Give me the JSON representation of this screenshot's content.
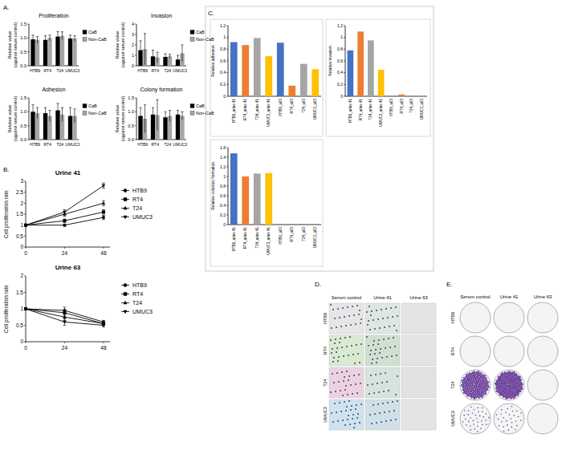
{
  "panel_labels": [
    "A.",
    "B.",
    "C.",
    "D.",
    "E."
  ],
  "chart_data": [
    {
      "type": "bar",
      "title": "Proliferation",
      "y_label": "Relative value (against serum control)",
      "categories": [
        "HTB9",
        "RT4",
        "T24",
        "UMUC3"
      ],
      "series": [
        {
          "name": "CaB",
          "color": "#000000",
          "values": [
            0.95,
            0.93,
            1.05,
            0.98
          ],
          "errors": [
            0.15,
            0.15,
            0.18,
            0.12
          ]
        },
        {
          "name": "Non-CaB",
          "color": "#a6a6a6",
          "values": [
            0.93,
            1.0,
            1.08,
            0.98
          ],
          "errors": [
            0.12,
            0.1,
            0.14,
            0.1
          ]
        }
      ],
      "ylim": [
        0,
        1.5
      ],
      "yticks": [
        {
          "value": 0,
          "label": "0.0"
        },
        {
          "value": 0.5,
          "label": "0.5"
        },
        {
          "value": 1,
          "label": "1.0"
        },
        {
          "value": 1.5,
          "label": "1.5"
        }
      ],
      "legend": "right"
    },
    {
      "type": "bar",
      "title": "Invasion",
      "y_label": "Relative value (against serum control)",
      "categories": [
        "HTB9",
        "RT4",
        "T24",
        "UMUC3"
      ],
      "series": [
        {
          "name": "CaB",
          "color": "#000000",
          "values": [
            1.5,
            0.9,
            0.85,
            0.6
          ],
          "errors": [
            0.9,
            0.6,
            0.3,
            0.4
          ]
        },
        {
          "name": "Non-CaB",
          "color": "#a6a6a6",
          "values": [
            1.6,
            0.8,
            0.9,
            1.2
          ],
          "errors": [
            1.5,
            0.5,
            0.2,
            0.8
          ]
        }
      ],
      "ylim": [
        0,
        4
      ],
      "yticks": [
        0,
        1,
        2,
        3,
        4
      ],
      "legend": "right"
    },
    {
      "type": "bar",
      "title": "Adhesion",
      "y_label": "Relative value (against serum control)",
      "categories": [
        "HTB9",
        "RT4",
        "T24",
        "UMUC3"
      ],
      "series": [
        {
          "name": "CaB",
          "color": "#000000",
          "values": [
            1.0,
            0.95,
            1.05,
            0.85
          ],
          "errors": [
            0.25,
            0.2,
            0.25,
            0.3
          ]
        },
        {
          "name": "Non-CaB",
          "color": "#a6a6a6",
          "values": [
            0.95,
            0.85,
            0.9,
            0.85
          ],
          "errors": [
            0.2,
            0.2,
            0.25,
            0.25
          ]
        }
      ],
      "ylim": [
        0,
        1.5
      ],
      "yticks": [
        {
          "value": 0,
          "label": "0.0"
        },
        {
          "value": 0.5,
          "label": "0.5"
        },
        {
          "value": 1,
          "label": "1.0"
        },
        {
          "value": 1.5,
          "label": "1.5"
        }
      ],
      "legend": "right"
    },
    {
      "type": "bar",
      "title": "Colony formation",
      "y_label": "Relative value (against serum control)",
      "categories": [
        "HTB9",
        "RT4",
        "T24",
        "UMUC3"
      ],
      "series": [
        {
          "name": "CaB",
          "color": "#000000",
          "values": [
            0.85,
            0.9,
            0.8,
            0.9
          ],
          "errors": [
            0.3,
            0.25,
            0.2,
            0.15
          ]
        },
        {
          "name": "Non-CaB",
          "color": "#a6a6a6",
          "values": [
            0.75,
            0.88,
            0.85,
            0.85
          ],
          "errors": [
            0.5,
            0.55,
            0.2,
            0.15
          ]
        }
      ],
      "ylim": [
        0,
        1.5
      ],
      "yticks": [
        {
          "value": 0,
          "label": "0.0"
        },
        {
          "value": 0.5,
          "label": "0.5"
        },
        {
          "value": 1,
          "label": "1.0"
        },
        {
          "value": 1.5,
          "label": "1.5"
        }
      ],
      "legend": "right"
    },
    {
      "type": "line",
      "title": "Urine 41",
      "y_label": "Cell proliferation rate",
      "x": [
        0,
        24,
        48
      ],
      "xlim": [
        0,
        52
      ],
      "xticks": [
        0,
        24,
        48
      ],
      "ylim": [
        0,
        3
      ],
      "yticks": [
        0,
        0.5,
        1,
        1.5,
        2,
        2.5,
        3
      ],
      "legend": "right",
      "series": [
        {
          "name": "HTB9",
          "color": "#000000",
          "marker": "circle",
          "values": [
            1,
            1.0,
            1.35
          ],
          "errors": [
            0,
            0.05,
            0.1
          ]
        },
        {
          "name": "RT4",
          "color": "#000000",
          "marker": "square",
          "values": [
            1,
            1.2,
            1.6
          ],
          "errors": [
            0,
            0.08,
            0.1
          ]
        },
        {
          "name": "T24",
          "color": "#000000",
          "marker": "triangle",
          "values": [
            1,
            1.5,
            2.0
          ],
          "errors": [
            0,
            0.1,
            0.12
          ]
        },
        {
          "name": "UMUC3",
          "color": "#000000",
          "marker": "triangle-down",
          "values": [
            1,
            1.6,
            2.8
          ],
          "errors": [
            0,
            0.1,
            0.12
          ]
        }
      ]
    },
    {
      "type": "line",
      "title": "Urine 63",
      "y_label": "Cell proliferation rate",
      "x": [
        0,
        24,
        48
      ],
      "xlim": [
        0,
        52
      ],
      "xticks": [
        0,
        24,
        48
      ],
      "ylim": [
        0,
        2
      ],
      "yticks": [
        0,
        0.5,
        1,
        1.5,
        2
      ],
      "legend": "right",
      "series": [
        {
          "name": "HTB9",
          "color": "#000000",
          "marker": "circle",
          "values": [
            1,
            0.95,
            0.6
          ],
          "errors": [
            0,
            0.1,
            0.05
          ]
        },
        {
          "name": "RT4",
          "color": "#000000",
          "marker": "square",
          "values": [
            1,
            0.88,
            0.55
          ],
          "errors": [
            0,
            0.08,
            0.05
          ]
        },
        {
          "name": "T24",
          "color": "#000000",
          "marker": "triangle",
          "values": [
            1,
            0.75,
            0.55
          ],
          "errors": [
            0,
            0.1,
            0.05
          ]
        },
        {
          "name": "UMUC3",
          "color": "#000000",
          "marker": "triangle-down",
          "values": [
            1,
            0.6,
            0.5
          ],
          "errors": [
            0,
            0.1,
            0.05
          ]
        }
      ]
    },
    {
      "type": "bar",
      "y_label": "Relative adhesion",
      "categories": [
        "HTB9_urine 41",
        "RT4_urine 41",
        "T24_urine 41",
        "UMUC3_urine 41",
        "HTB9_u63",
        "RT4_u63",
        "T24_u63",
        "UMUC3_u63"
      ],
      "values": [
        0.92,
        0.87,
        0.99,
        0.68,
        0.91,
        0.18,
        0.55,
        0.46
      ],
      "colors": [
        "#4472c4",
        "#ed7d31",
        "#a5a5a5",
        "#ffc000",
        "#4472c4",
        "#ed7d31",
        "#a5a5a5",
        "#ffc000"
      ],
      "ylim": [
        0,
        1.2
      ],
      "yticks": [
        0,
        0.2,
        0.4,
        0.6,
        0.8,
        1,
        1.2
      ]
    },
    {
      "type": "bar",
      "y_label": "Relative invasion",
      "categories": [
        "HTB9_urine 41",
        "RT4_urine 41",
        "T24_urine 41",
        "UMUC3_urine 41",
        "HTB9_u63",
        "RT4_u63",
        "T24_u63",
        "UMUC3_u63"
      ],
      "values": [
        0.78,
        1.1,
        0.95,
        0.45,
        0,
        0.03,
        0.005,
        0.003
      ],
      "colors": [
        "#4472c4",
        "#ed7d31",
        "#a5a5a5",
        "#ffc000",
        "#4472c4",
        "#ed7d31",
        "#a5a5a5",
        "#ffc000"
      ],
      "ylim": [
        0,
        1.2
      ],
      "yticks": [
        0,
        0.2,
        0.4,
        0.6,
        0.8,
        1,
        1.2
      ]
    },
    {
      "type": "bar",
      "y_label": "Relative colonies formation",
      "categories": [
        "HTB9_urine 41",
        "RT4_urine 41",
        "T24_urine 41",
        "UMUC3_urine 41",
        "HTB9_u63",
        "RT4_u63",
        "T24_u63",
        "UMUC3_u63"
      ],
      "values": [
        1.48,
        1.0,
        1.06,
        1.07,
        0,
        0,
        0,
        0
      ],
      "colors": [
        "#4472c4",
        "#ed7d31",
        "#a5a5a5",
        "#ffc000",
        "#4472c4",
        "#ed7d31",
        "#a5a5a5",
        "#ffc000"
      ],
      "ylim": [
        0,
        1.6
      ],
      "yticks": [
        0,
        0.2,
        0.4,
        0.6,
        0.8,
        1,
        1.2,
        1.4,
        1.6
      ]
    }
  ],
  "micrographs": {
    "columns": [
      "Serum control",
      "Urine 41",
      "Urine 63"
    ],
    "rows": [
      "HTB9",
      "RT4",
      "T24",
      "UMUC3"
    ]
  },
  "plates": {
    "columns": [
      "Serum control",
      "Urine 41",
      "Urine 63"
    ],
    "rows": [
      "HTB9",
      "RT4",
      "T24",
      "UMUC3"
    ]
  }
}
